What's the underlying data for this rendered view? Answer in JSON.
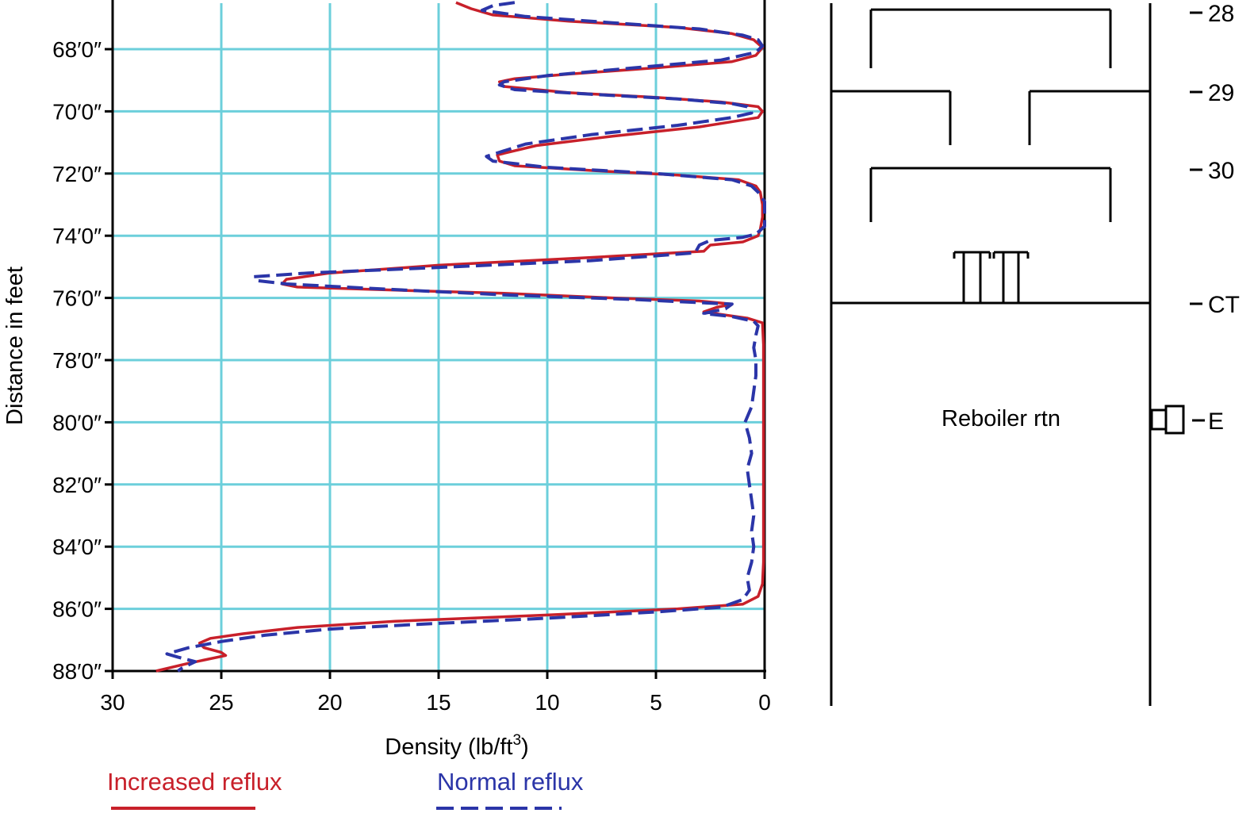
{
  "colors": {
    "grid": "#6CCFDB",
    "axis": "#000000",
    "increased": "#C8202A",
    "normal": "#2B35A8",
    "column": "#000000"
  },
  "chart_data": {
    "type": "line",
    "title": "",
    "xlabel_main": "Density (lb/ft",
    "xlabel_sup": "3",
    "xlabel_end": ")",
    "ylabel": "Distance in feet",
    "x_axis_reversed": true,
    "xlim": [
      30,
      0
    ],
    "ylim": [
      66.5,
      88
    ],
    "x_ticks": [
      30,
      25,
      20,
      15,
      10,
      5,
      0
    ],
    "x_tick_labels": [
      "30",
      "25",
      "20",
      "15",
      "10",
      "5",
      "0"
    ],
    "y_ticks": [
      68,
      70,
      72,
      74,
      76,
      78,
      80,
      82,
      84,
      86,
      88
    ],
    "y_tick_labels": [
      "68′0″",
      "70′0″",
      "72′0″",
      "74′0″",
      "76′0″",
      "78′0″",
      "80′0″",
      "82′0″",
      "84′0″",
      "86′0″",
      "88′0″"
    ],
    "grid": true,
    "legend_position": "bottom",
    "series": [
      {
        "name": "Increased reflux",
        "style": "solid",
        "points": [
          [
            14.2,
            66.5
          ],
          [
            13.5,
            66.7
          ],
          [
            12.5,
            66.9
          ],
          [
            9,
            67.1
          ],
          [
            4,
            67.3
          ],
          [
            1.5,
            67.5
          ],
          [
            0.5,
            67.7
          ],
          [
            0.1,
            67.95
          ],
          [
            0.4,
            68.2
          ],
          [
            1.5,
            68.4
          ],
          [
            5,
            68.6
          ],
          [
            9,
            68.8
          ],
          [
            11.5,
            68.95
          ],
          [
            12.2,
            69.05
          ],
          [
            12,
            69.2
          ],
          [
            9,
            69.4
          ],
          [
            5,
            69.55
          ],
          [
            2,
            69.7
          ],
          [
            0.3,
            69.85
          ],
          [
            0.1,
            70.0
          ],
          [
            0.3,
            70.2
          ],
          [
            3,
            70.5
          ],
          [
            7,
            70.8
          ],
          [
            10.5,
            71.1
          ],
          [
            12.3,
            71.4
          ],
          [
            12.2,
            71.6
          ],
          [
            11.5,
            71.75
          ],
          [
            8,
            71.9
          ],
          [
            4,
            72.05
          ],
          [
            1.2,
            72.2
          ],
          [
            0.4,
            72.4
          ],
          [
            0.2,
            72.6
          ],
          [
            0.1,
            73.0
          ],
          [
            0.1,
            73.4
          ],
          [
            0.2,
            73.8
          ],
          [
            0.3,
            74.0
          ],
          [
            1,
            74.2
          ],
          [
            2.5,
            74.3
          ],
          [
            2.8,
            74.5
          ],
          [
            8,
            74.7
          ],
          [
            15,
            74.95
          ],
          [
            20,
            75.2
          ],
          [
            22,
            75.4
          ],
          [
            22.2,
            75.55
          ],
          [
            21.5,
            75.65
          ],
          [
            17,
            75.75
          ],
          [
            12,
            75.85
          ],
          [
            7,
            76.0
          ],
          [
            3,
            76.1
          ],
          [
            1.5,
            76.2
          ],
          [
            2.2,
            76.3
          ],
          [
            2.8,
            76.45
          ],
          [
            1.8,
            76.55
          ],
          [
            0.8,
            76.65
          ],
          [
            0.1,
            76.8
          ],
          [
            0.05,
            77.5
          ],
          [
            0.05,
            78.5
          ],
          [
            0.05,
            79.5
          ],
          [
            0.05,
            80.5
          ],
          [
            0.05,
            81.5
          ],
          [
            0.05,
            82.5
          ],
          [
            0.05,
            83.5
          ],
          [
            0.05,
            84.5
          ],
          [
            0.1,
            85.2
          ],
          [
            0.3,
            85.6
          ],
          [
            1,
            85.85
          ],
          [
            4,
            86.0
          ],
          [
            10,
            86.2
          ],
          [
            17,
            86.4
          ],
          [
            21.5,
            86.6
          ],
          [
            24,
            86.8
          ],
          [
            25.5,
            86.95
          ],
          [
            26,
            87.1
          ],
          [
            25.8,
            87.25
          ],
          [
            25,
            87.4
          ],
          [
            24.8,
            87.5
          ],
          [
            26.5,
            87.75
          ],
          [
            28,
            88.0
          ]
        ]
      },
      {
        "name": "Normal reflux",
        "style": "dashed",
        "points": [
          [
            11.5,
            66.5
          ],
          [
            12.5,
            66.6
          ],
          [
            13,
            66.75
          ],
          [
            11,
            66.95
          ],
          [
            7,
            67.15
          ],
          [
            3,
            67.35
          ],
          [
            1,
            67.55
          ],
          [
            0.3,
            67.7
          ],
          [
            0.1,
            67.9
          ],
          [
            0.4,
            68.1
          ],
          [
            2,
            68.35
          ],
          [
            6,
            68.6
          ],
          [
            10,
            68.85
          ],
          [
            12,
            69.05
          ],
          [
            12.2,
            69.15
          ],
          [
            11.5,
            69.3
          ],
          [
            8,
            69.45
          ],
          [
            4,
            69.6
          ],
          [
            1.5,
            69.75
          ],
          [
            0.8,
            69.85
          ],
          [
            0.6,
            70.05
          ],
          [
            1.5,
            70.2
          ],
          [
            4,
            70.45
          ],
          [
            8,
            70.75
          ],
          [
            11,
            71.05
          ],
          [
            12.8,
            71.45
          ],
          [
            12.5,
            71.6
          ],
          [
            10,
            71.8
          ],
          [
            5,
            72.0
          ],
          [
            1.5,
            72.2
          ],
          [
            0.6,
            72.4
          ],
          [
            0.3,
            72.6
          ],
          [
            0,
            72.9
          ],
          [
            0,
            73.3
          ],
          [
            0,
            73.7
          ],
          [
            0.4,
            73.95
          ],
          [
            1,
            74.05
          ],
          [
            2.5,
            74.15
          ],
          [
            3,
            74.3
          ],
          [
            3.2,
            74.55
          ],
          [
            8,
            74.8
          ],
          [
            16,
            75.05
          ],
          [
            21,
            75.2
          ],
          [
            23.5,
            75.32
          ],
          [
            23.3,
            75.45
          ],
          [
            22,
            75.55
          ],
          [
            18,
            75.7
          ],
          [
            12,
            75.9
          ],
          [
            6,
            76.05
          ],
          [
            3,
            76.15
          ],
          [
            1.5,
            76.2
          ],
          [
            1.8,
            76.35
          ],
          [
            2.8,
            76.5
          ],
          [
            1.5,
            76.6
          ],
          [
            0.5,
            76.75
          ],
          [
            0.3,
            76.9
          ],
          [
            0.4,
            77.2
          ],
          [
            0.5,
            77.6
          ],
          [
            0.4,
            78.0
          ],
          [
            0.4,
            78.5
          ],
          [
            0.5,
            79.0
          ],
          [
            0.6,
            79.5
          ],
          [
            0.9,
            80.0
          ],
          [
            0.7,
            80.5
          ],
          [
            0.6,
            81.0
          ],
          [
            0.8,
            81.5
          ],
          [
            0.7,
            82.0
          ],
          [
            0.6,
            82.5
          ],
          [
            0.5,
            83.0
          ],
          [
            0.6,
            83.5
          ],
          [
            0.5,
            84.0
          ],
          [
            0.6,
            84.5
          ],
          [
            0.8,
            85.0
          ],
          [
            0.7,
            85.4
          ],
          [
            1,
            85.7
          ],
          [
            2,
            85.95
          ],
          [
            5,
            86.1
          ],
          [
            10,
            86.3
          ],
          [
            16,
            86.5
          ],
          [
            20,
            86.65
          ],
          [
            23,
            86.85
          ],
          [
            25,
            87.05
          ],
          [
            26.5,
            87.25
          ],
          [
            27.5,
            87.45
          ],
          [
            27,
            87.55
          ],
          [
            26.2,
            87.7
          ],
          [
            26.8,
            87.9
          ],
          [
            27,
            88.0
          ]
        ]
      }
    ]
  },
  "column": {
    "tray_labels": [
      "28",
      "29",
      "30",
      "CT",
      "E"
    ],
    "tray_levels": [
      67.85,
      69.3,
      71.85,
      76.15,
      79.95
    ],
    "reboiler_label": "Reboiler rtn"
  },
  "legend": {
    "increased_label": "Increased reflux",
    "normal_label": "Normal reflux"
  }
}
